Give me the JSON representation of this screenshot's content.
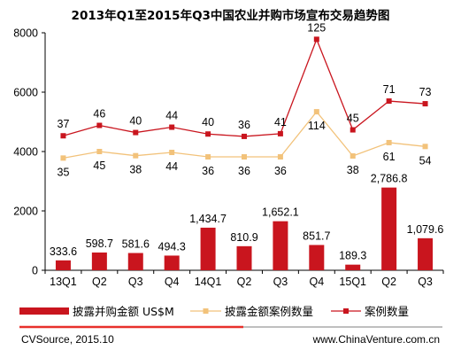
{
  "title": "2013年Q1至2015年Q3中国农业并购市场宣布交易趋势图",
  "footer": {
    "source": "CVSource, 2015.10",
    "site": "www.ChinaVenture.com.cn"
  },
  "colors": {
    "bar": "#c9151e",
    "amount_cases_line": "#f2c27a",
    "cases_line": "#c9151e",
    "axis": "#000000",
    "divider_red": "#e8302b",
    "divider_gray": "#aaaaaa"
  },
  "chart_data": {
    "type": "bar",
    "categories": [
      "13Q1",
      "Q2",
      "Q3",
      "Q4",
      "14Q1",
      "Q2",
      "Q3",
      "Q4",
      "15Q1",
      "Q2",
      "Q3"
    ],
    "ylim": [
      0,
      8000
    ],
    "yticks": [
      "0",
      "2000",
      "4000",
      "6000",
      "8000"
    ],
    "grid": false,
    "legend_position": "bottom",
    "series": [
      {
        "name": "披露并购金额 US$M",
        "type": "bar",
        "values": [
          333.6,
          598.7,
          581.6,
          494.3,
          1434.7,
          810.9,
          1652.1,
          851.7,
          189.3,
          2786.8,
          1079.6
        ],
        "labels": [
          "333.6",
          "598.7",
          "581.6",
          "494.3",
          "1,434.7",
          "810.9",
          "1,652.1",
          "851.7",
          "189.3",
          "2,786.8",
          "1,079.6"
        ]
      },
      {
        "name": "披露金额案例数量",
        "type": "line",
        "marker": "square",
        "values": [
          35,
          45,
          38,
          44,
          36,
          36,
          36,
          114,
          38,
          61,
          54
        ],
        "plot_values": [
          3780,
          4000,
          3860,
          3970,
          3820,
          3820,
          3820,
          5340,
          3850,
          4300,
          4170
        ],
        "labels": [
          "35",
          "45",
          "38",
          "44",
          "36",
          "36",
          "36",
          "114",
          "38",
          "61",
          "54"
        ]
      },
      {
        "name": "案例数量",
        "type": "line",
        "marker": "square",
        "values": [
          37,
          46,
          40,
          44,
          40,
          36,
          41,
          125,
          45,
          71,
          73
        ],
        "plot_values": [
          4530,
          4880,
          4640,
          4820,
          4590,
          4510,
          4600,
          7780,
          4730,
          5700,
          5610
        ],
        "labels": [
          "37",
          "46",
          "40",
          "44",
          "40",
          "36",
          "41",
          "125",
          "45",
          "71",
          "73"
        ]
      }
    ]
  }
}
